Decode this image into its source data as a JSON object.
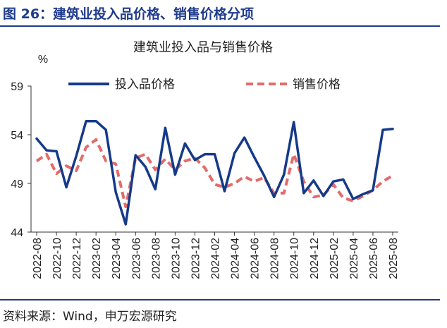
{
  "figure": {
    "title": "图 26：建筑业投入品价格、销售价格分项",
    "source": "资料来源：Wind，申万宏源研究"
  },
  "colors": {
    "input_series": "#163a8a",
    "sales_series": "#e36b6b",
    "accent": "#1f3b8c"
  },
  "chart_data": {
    "type": "line",
    "title": "建筑业投入品与销售价格",
    "ylabel": "%",
    "ylim": [
      44,
      59
    ],
    "yticks": [
      44,
      49,
      54,
      59
    ],
    "xtick_labels": [
      "2022-08",
      "2022-10",
      "2022-12",
      "2023-02",
      "2023-04",
      "2023-06",
      "2023-08",
      "2023-10",
      "2023-12",
      "2024-02",
      "2024-04",
      "2024-06",
      "2024-08",
      "2024-10",
      "2024-12",
      "2025-02",
      "2025-04",
      "2025-06",
      "2025-08"
    ],
    "legend_position": "top",
    "grid": false,
    "x": [
      "2022-08",
      "2022-09",
      "2022-10",
      "2022-11",
      "2022-12",
      "2023-01",
      "2023-02",
      "2023-03",
      "2023-04",
      "2023-05",
      "2023-06",
      "2023-07",
      "2023-08",
      "2023-09",
      "2023-10",
      "2023-11",
      "2023-12",
      "2024-01",
      "2024-02",
      "2024-03",
      "2024-04",
      "2024-05",
      "2024-06",
      "2024-07",
      "2024-08",
      "2024-09",
      "2024-10",
      "2024-11",
      "2024-12",
      "2025-01",
      "2025-02",
      "2025-03",
      "2025-04",
      "2025-05",
      "2025-06",
      "2025-07",
      "2025-08"
    ],
    "series": [
      {
        "name": "投入品价格",
        "style": "solid",
        "values": [
          53.6,
          52.4,
          52.3,
          48.6,
          51.8,
          55.4,
          55.4,
          54.5,
          48.1,
          44.8,
          51.9,
          50.7,
          48.4,
          54.7,
          49.9,
          53.1,
          51.4,
          52.0,
          52.0,
          48.2,
          52.1,
          53.7,
          51.7,
          49.8,
          47.6,
          49.9,
          55.3,
          48.0,
          49.3,
          47.7,
          49.2,
          49.4,
          47.4,
          47.9,
          48.3,
          54.5,
          54.6
        ]
      },
      {
        "name": "销售价格",
        "style": "dashed",
        "values": [
          51.3,
          52.0,
          50.0,
          50.8,
          50.3,
          52.7,
          53.5,
          51.3,
          51.0,
          46.6,
          51.6,
          52.0,
          50.4,
          51.5,
          50.4,
          51.3,
          51.6,
          50.6,
          48.9,
          48.6,
          49.0,
          49.7,
          49.2,
          49.6,
          48.0,
          48.0,
          52.0,
          49.2,
          47.6,
          47.8,
          48.9,
          47.5,
          47.2,
          47.7,
          48.3,
          49.2,
          49.8
        ]
      }
    ]
  }
}
